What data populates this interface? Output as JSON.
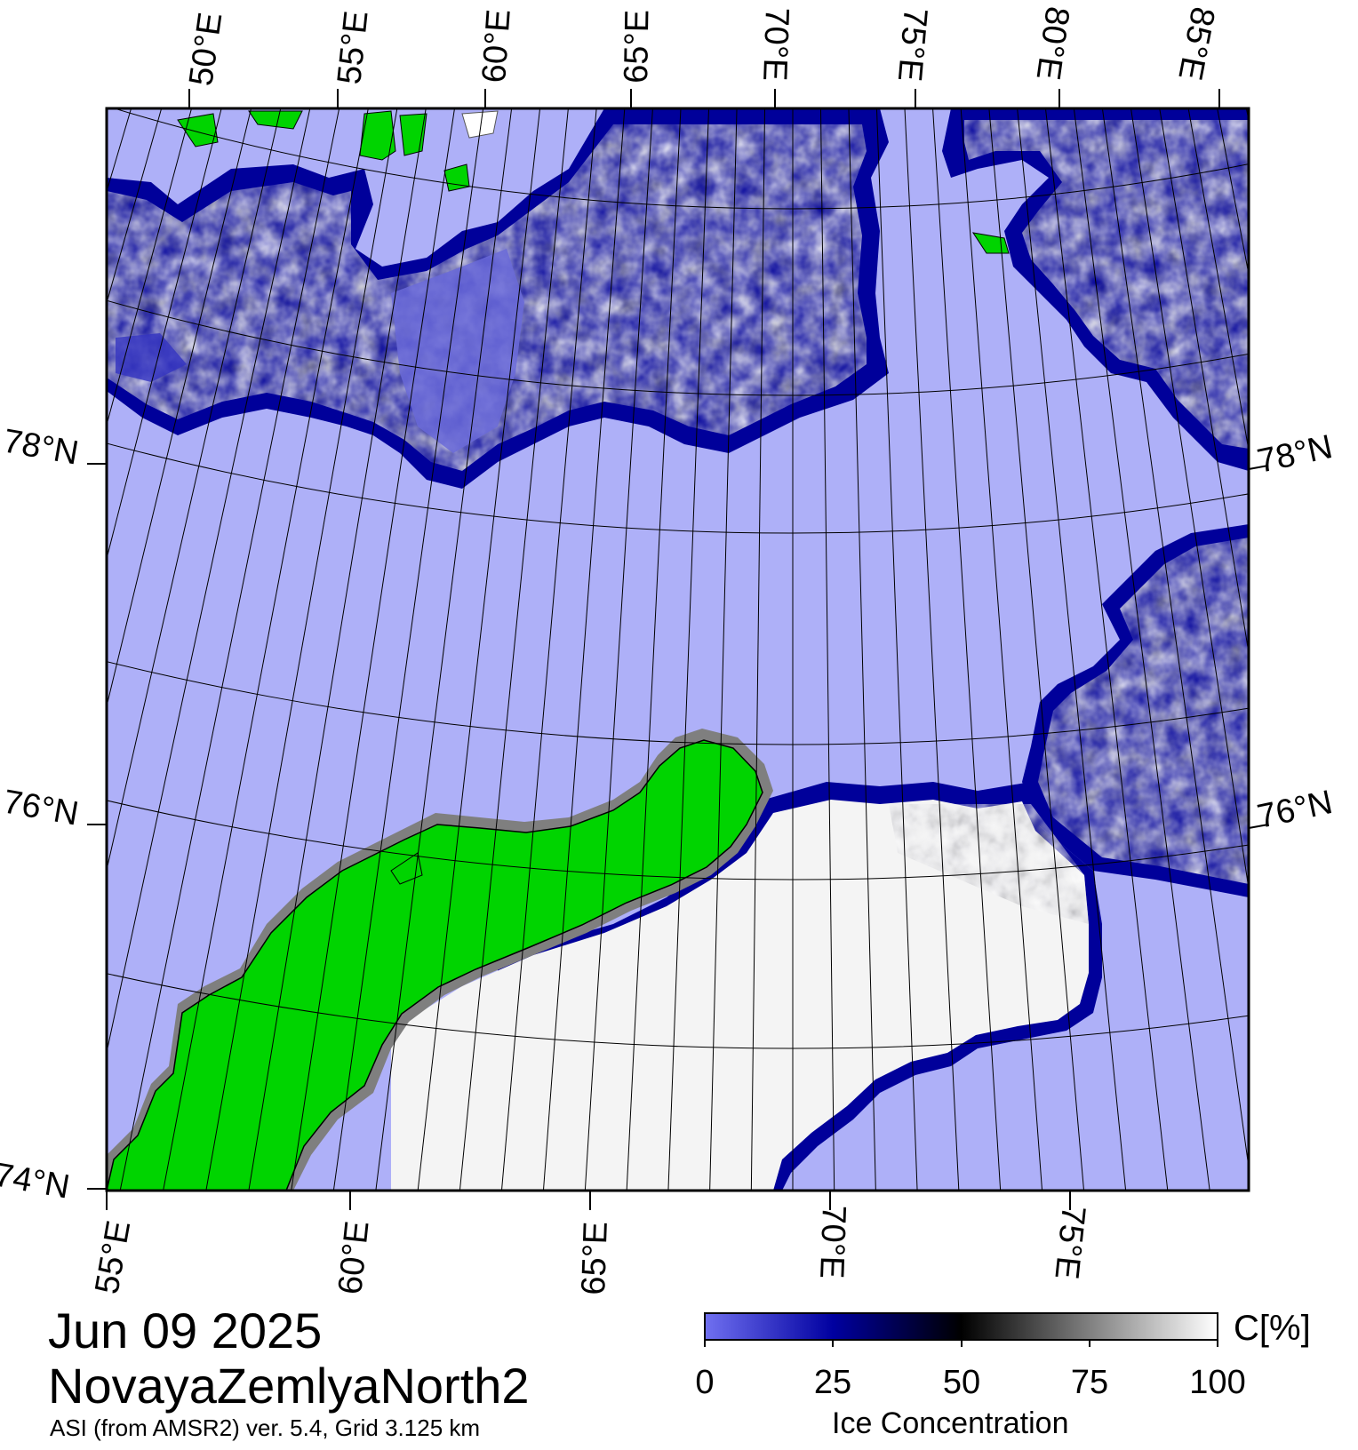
{
  "title": {
    "date": "Jun 09 2025",
    "region": "NovayaZemlyaNorth2",
    "product": "ASI (from AMSR2) ver. 5.4,  Grid 3.125 km"
  },
  "map": {
    "top_lon_labels": [
      "50°E",
      "55°E",
      "60°E",
      "65°E",
      "70°E",
      "75°E",
      "80°E",
      "85°E"
    ],
    "bottom_lon_labels": [
      "55°E",
      "60°E",
      "65°E",
      "70°E",
      "75°E"
    ],
    "left_lat_labels": [
      "78°N",
      "76°N",
      "74°N"
    ],
    "right_lat_labels": [
      "78°N",
      "76°N"
    ],
    "colors": {
      "open_water": "#aeb0f8",
      "land": "#00d400",
      "coast": "#7f7f7f",
      "ice_edge": "#00009a",
      "ice_dark": "#101018",
      "ice_mid": "#8a8a8a",
      "ice_light": "#e8e8e8",
      "ice_full": "#ffffff"
    }
  },
  "legend": {
    "title": "Ice Concentration",
    "unit": "C[%]",
    "ticks": [
      "0",
      "25",
      "50",
      "75",
      "100"
    ],
    "gradient": [
      "#7070f0",
      "#0000a0",
      "#000000",
      "#808080",
      "#ffffff"
    ]
  }
}
